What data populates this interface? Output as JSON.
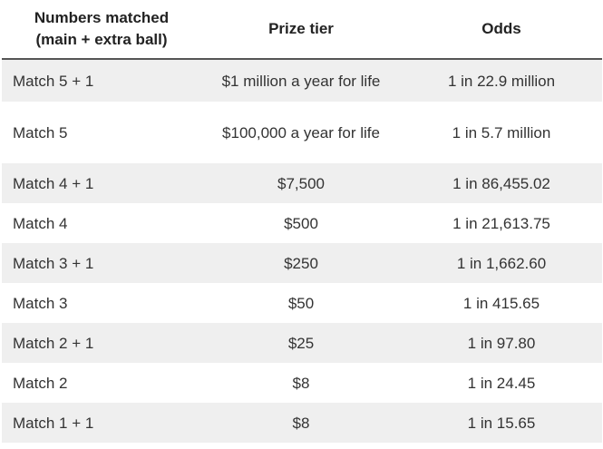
{
  "table": {
    "header": [
      "Numbers matched (main + extra ball)",
      "Prize tier",
      "Odds"
    ],
    "rows": [
      [
        "Match 5 + 1",
        "$1 million a year for life",
        "1 in 22.9 million"
      ],
      [
        "Match 5",
        "$100,000 a year for life",
        "1 in 5.7 million"
      ],
      [
        "Match 4 + 1",
        "$7,500",
        "1 in 86,455.02"
      ],
      [
        "Match 4",
        "$500",
        "1 in 21,613.75"
      ],
      [
        "Match 3 + 1",
        "$250",
        "1 in 1,662.60"
      ],
      [
        "Match 3",
        "$50",
        "1 in 415.65"
      ],
      [
        "Match 2 + 1",
        "$25",
        "1 in 97.80"
      ],
      [
        "Match 2",
        "$8",
        "1 in 24.45"
      ],
      [
        "Match 1 + 1",
        "$8",
        "1 in 15.65"
      ]
    ]
  }
}
